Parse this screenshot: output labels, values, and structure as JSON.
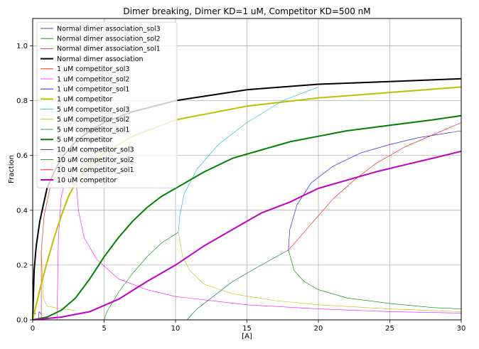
{
  "chart_data": {
    "type": "line",
    "title": "Dimer breaking, Dimer KD=1 uM, Competitor KD=500 nM",
    "xlabel": "[A]",
    "ylabel": "Fraction",
    "xlim": [
      0,
      30
    ],
    "ylim": [
      0,
      1.1
    ],
    "grid": true,
    "legend_position": "upper-left",
    "x_ticks": [
      "0",
      "5",
      "10",
      "15",
      "20",
      "25",
      "30"
    ],
    "y_ticks": [
      "0.0",
      "0.2",
      "0.4",
      "0.6",
      "0.8",
      "1.0"
    ],
    "series": [
      {
        "name": "Normal dimer association_sol3",
        "color": "#0000ff",
        "width": "thin",
        "points": [
          [
            0,
            0
          ],
          [
            0.1,
            0.03
          ],
          [
            0.2,
            0.02
          ]
        ]
      },
      {
        "name": "Normal dimer association_sol2",
        "color": "#008000",
        "width": "thin",
        "points": []
      },
      {
        "name": "Normal dimer association_sol1",
        "color": "#ff0000",
        "width": "thin",
        "points": []
      },
      {
        "name": "Normal dimer association",
        "color": "#000000",
        "width": "thick",
        "points": [
          [
            0,
            0
          ],
          [
            0.1,
            0.18
          ],
          [
            0.25,
            0.27
          ],
          [
            0.5,
            0.36
          ],
          [
            1,
            0.48
          ],
          [
            1.5,
            0.54
          ],
          [
            2,
            0.59
          ],
          [
            3,
            0.65
          ],
          [
            4,
            0.69
          ],
          [
            5,
            0.72
          ],
          [
            7,
            0.76
          ],
          [
            10,
            0.8
          ],
          [
            15,
            0.84
          ],
          [
            20,
            0.86
          ],
          [
            25,
            0.87
          ],
          [
            30,
            0.88
          ]
        ]
      },
      {
        "name": "1 uM competitor_sol3",
        "color": "#ff0000",
        "width": "thin",
        "points": [
          [
            0.6,
            0
          ],
          [
            0.6,
            0.25
          ],
          [
            0.8,
            0.38
          ],
          [
            1.2,
            0.48
          ],
          [
            2,
            0.57
          ],
          [
            3,
            0.63
          ]
        ]
      },
      {
        "name": "1 uM competitor_sol2",
        "color": "#ff00ff",
        "width": "thin",
        "points": [
          [
            3,
            0.53
          ],
          [
            3.2,
            0.4
          ],
          [
            3.6,
            0.3
          ],
          [
            4.5,
            0.22
          ],
          [
            6,
            0.15
          ],
          [
            8,
            0.11
          ],
          [
            10,
            0.085
          ],
          [
            15,
            0.055
          ],
          [
            20,
            0.04
          ],
          [
            25,
            0.03
          ],
          [
            30,
            0.025
          ]
        ]
      },
      {
        "name": "1 uM competitor_sol1",
        "color": "#0000ff",
        "width": "thin",
        "points": []
      },
      {
        "name": "1 uM competitor",
        "color": "#bfbf00",
        "width": "thick",
        "points": [
          [
            0,
            0
          ],
          [
            0.5,
            0.11
          ],
          [
            1,
            0.21
          ],
          [
            1.5,
            0.3
          ],
          [
            2,
            0.38
          ],
          [
            2.5,
            0.45
          ],
          [
            3,
            0.5
          ],
          [
            4,
            0.56
          ],
          [
            5,
            0.61
          ],
          [
            7,
            0.67
          ],
          [
            10,
            0.73
          ],
          [
            15,
            0.78
          ],
          [
            20,
            0.81
          ],
          [
            25,
            0.83
          ],
          [
            30,
            0.85
          ]
        ]
      },
      {
        "name": "5 uM competitor_sol3",
        "color": "#00bfbf",
        "width": "thin",
        "points": [
          [
            10.2,
            0.32
          ],
          [
            10.3,
            0.38
          ],
          [
            10.6,
            0.46
          ],
          [
            11.5,
            0.55
          ],
          [
            13,
            0.64
          ],
          [
            15,
            0.72
          ],
          [
            17.5,
            0.8
          ],
          [
            20,
            0.85
          ]
        ]
      },
      {
        "name": "5 uM competitor_sol2",
        "color": "#bfbf00",
        "width": "thin",
        "points": [
          [
            10.2,
            0.32
          ],
          [
            10.5,
            0.23
          ],
          [
            11,
            0.18
          ],
          [
            12,
            0.13
          ],
          [
            14,
            0.095
          ],
          [
            17,
            0.07
          ],
          [
            20,
            0.055
          ],
          [
            25,
            0.04
          ],
          [
            30,
            0.03
          ]
        ]
      },
      {
        "name": "5 uM competitor_sol1",
        "color": "#008000",
        "width": "thin",
        "points": [
          [
            5,
            0
          ],
          [
            5.2,
            0.03
          ],
          [
            6,
            0.1
          ],
          [
            7,
            0.17
          ],
          [
            8,
            0.23
          ],
          [
            9,
            0.28
          ],
          [
            10.2,
            0.32
          ]
        ]
      },
      {
        "name": "5 uM competitor",
        "color": "#008000",
        "width": "thick",
        "points": [
          [
            0,
            0
          ],
          [
            1,
            0.01
          ],
          [
            2,
            0.035
          ],
          [
            3,
            0.08
          ],
          [
            4,
            0.15
          ],
          [
            5,
            0.23
          ],
          [
            6,
            0.3
          ],
          [
            7,
            0.36
          ],
          [
            8,
            0.41
          ],
          [
            9,
            0.45
          ],
          [
            10,
            0.48
          ],
          [
            12,
            0.54
          ],
          [
            14,
            0.59
          ],
          [
            16,
            0.62
          ],
          [
            18,
            0.65
          ],
          [
            20,
            0.67
          ],
          [
            22,
            0.69
          ],
          [
            25,
            0.71
          ],
          [
            28,
            0.73
          ],
          [
            30,
            0.745
          ]
        ]
      },
      {
        "name": "10 uM competitor_sol3",
        "color": "#0000ff",
        "width": "thin",
        "points": [
          [
            17.9,
            0.255
          ],
          [
            18,
            0.33
          ],
          [
            18.5,
            0.42
          ],
          [
            19.5,
            0.5
          ],
          [
            21,
            0.56
          ],
          [
            23,
            0.61
          ],
          [
            25,
            0.64
          ],
          [
            27,
            0.665
          ],
          [
            30,
            0.69
          ]
        ]
      },
      {
        "name": "10 uM competitor_sol2",
        "color": "#008000",
        "width": "thin",
        "points": [
          [
            17.9,
            0.255
          ],
          [
            18.3,
            0.18
          ],
          [
            19,
            0.14
          ],
          [
            20,
            0.11
          ],
          [
            22,
            0.08
          ],
          [
            25,
            0.06
          ],
          [
            28,
            0.045
          ],
          [
            30,
            0.04
          ]
        ]
      },
      {
        "name": "10 uM competitor_sol1",
        "color": "#ff0000",
        "width": "thin",
        "points": [
          [
            17.9,
            0.255
          ],
          [
            18.5,
            0.29
          ],
          [
            19.5,
            0.35
          ],
          [
            21,
            0.44
          ],
          [
            22.5,
            0.51
          ],
          [
            24,
            0.57
          ],
          [
            26,
            0.63
          ],
          [
            28,
            0.675
          ],
          [
            30,
            0.72
          ]
        ]
      },
      {
        "name": "10 uM competitor",
        "color": "#bf00bf",
        "width": "thick",
        "points": [
          [
            0,
            0
          ],
          [
            2,
            0.01
          ],
          [
            4,
            0.03
          ],
          [
            6,
            0.075
          ],
          [
            8,
            0.14
          ],
          [
            10,
            0.2
          ],
          [
            12,
            0.27
          ],
          [
            14,
            0.33
          ],
          [
            16,
            0.39
          ],
          [
            18,
            0.43
          ],
          [
            20,
            0.48
          ],
          [
            22,
            0.51
          ],
          [
            24,
            0.54
          ],
          [
            26,
            0.565
          ],
          [
            28,
            0.59
          ],
          [
            30,
            0.615
          ]
        ]
      }
    ],
    "extra_curves": [
      {
        "color": "#bfbf00",
        "width": "thin",
        "points": [
          [
            0.6,
            0.25
          ],
          [
            0.75,
            0.08
          ],
          [
            1,
            0.05
          ],
          [
            2,
            0.04
          ],
          [
            3,
            0.035
          ]
        ]
      },
      {
        "color": "#ff00ff",
        "width": "thin",
        "points": [
          [
            1.7,
            0
          ],
          [
            1.8,
            0.3
          ],
          [
            2,
            0.45
          ],
          [
            2.5,
            0.55
          ],
          [
            3,
            0.55
          ]
        ]
      },
      {
        "color": "#006060",
        "width": "thin",
        "points": [
          [
            10.8,
            0
          ],
          [
            11.5,
            0.04
          ],
          [
            12.5,
            0.08
          ],
          [
            14,
            0.14
          ],
          [
            16,
            0.2
          ],
          [
            17.9,
            0.255
          ]
        ]
      },
      {
        "color": "#0000ff",
        "width": "thin",
        "points": [
          [
            0.4,
            0
          ],
          [
            0.45,
            0.03
          ],
          [
            0.6,
            0.02
          ]
        ]
      }
    ]
  }
}
